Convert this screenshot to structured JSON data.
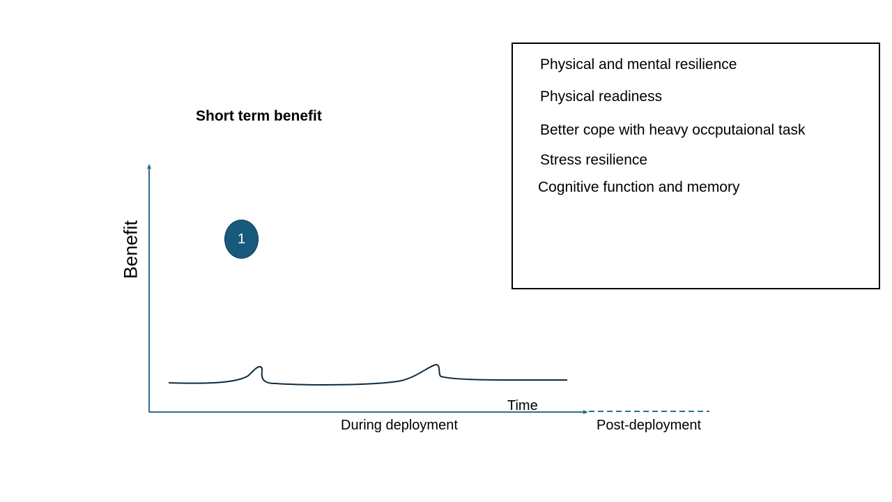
{
  "title": "Short term benefit",
  "benefits_box": {
    "items": [
      "Physical and mental resilience",
      "Physical readiness",
      "Better cope with heavy  occputaional task",
      "Stress resilience",
      "Cognitive function and memory"
    ]
  },
  "axes": {
    "y_label": "Benefit",
    "x_label": "Time",
    "phase_during": "During deployment",
    "phase_post": "Post-deployment"
  },
  "marker": {
    "number": "1"
  },
  "colors": {
    "axis": "#2e6b8f",
    "curve": "#0f2a3d",
    "badge_fill": "#185a7d"
  }
}
